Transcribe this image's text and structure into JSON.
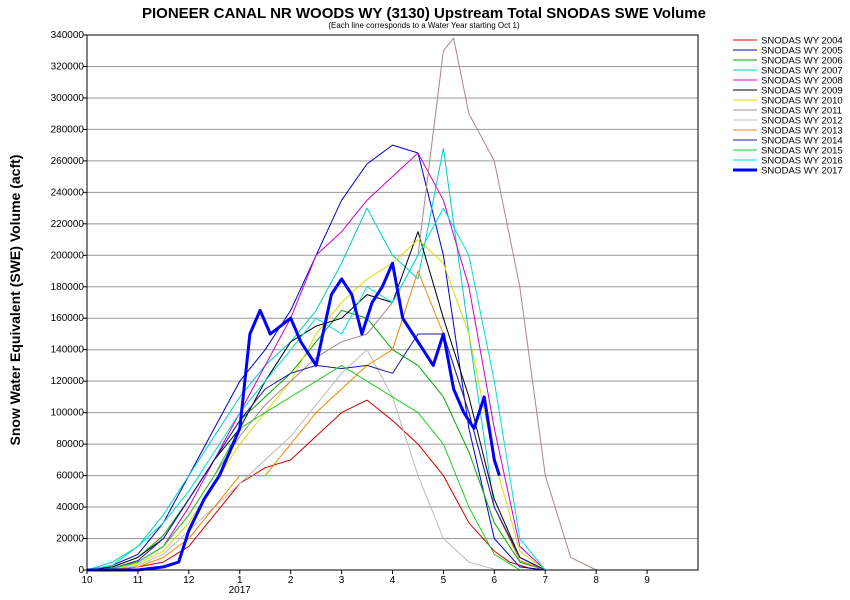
{
  "chart_data": {
    "type": "line",
    "title": "PIONEER CANAL NR WOODS WY (3130) Upstream Total SNODAS SWE Volume",
    "subtitle": "(Each line corresponds to a Water Year starting Oct 1)",
    "ylabel": "Snow Water Equivalent (SWE) Volume (acft)",
    "xlabel": "",
    "ylim": [
      0,
      340000
    ],
    "yticks": [
      0,
      20000,
      40000,
      60000,
      80000,
      100000,
      120000,
      140000,
      160000,
      180000,
      200000,
      220000,
      240000,
      260000,
      280000,
      300000,
      320000,
      340000
    ],
    "ytick_labels": [
      "0",
      "20000",
      "40000",
      "60000",
      "80000",
      "100000",
      "120000",
      "140000",
      "160000",
      "180000",
      "200000",
      "220000",
      "240000",
      "260000",
      "280000",
      "300000",
      "320000",
      "340000"
    ],
    "xlim": [
      10,
      22
    ],
    "xticks": [
      {
        "x": 10,
        "label": "10"
      },
      {
        "x": 11,
        "label": "11"
      },
      {
        "x": 12,
        "label": "12"
      },
      {
        "x": 13,
        "label": "1"
      },
      {
        "x": 14,
        "label": "2"
      },
      {
        "x": 15,
        "label": "3"
      },
      {
        "x": 16,
        "label": "4"
      },
      {
        "x": 17,
        "label": "5"
      },
      {
        "x": 18,
        "label": "6"
      },
      {
        "x": 19,
        "label": "7"
      },
      {
        "x": 20,
        "label": "8"
      },
      {
        "x": 21,
        "label": "9"
      }
    ],
    "year_label": {
      "x": 13,
      "label": "2017"
    },
    "grid": "horizontal",
    "legend_position": "right",
    "series": [
      {
        "name": "SNODAS WY 2004",
        "color": "#cc0000",
        "x": [
          10,
          10.5,
          11,
          11.5,
          12,
          12.5,
          13,
          13.5,
          14,
          14.5,
          15,
          15.5,
          16,
          16.5,
          17,
          17.5,
          18,
          18.3,
          18.7,
          19
        ],
        "values": [
          0,
          0,
          2000,
          5000,
          15000,
          35000,
          55000,
          65000,
          70000,
          85000,
          100000,
          108000,
          95000,
          80000,
          60000,
          30000,
          12000,
          5000,
          1000,
          0
        ]
      },
      {
        "name": "SNODAS WY 2005",
        "color": "#0000cc",
        "x": [
          10,
          10.5,
          11,
          11.5,
          12,
          12.5,
          13,
          13.5,
          14,
          14.5,
          15,
          15.5,
          16,
          16.5,
          17,
          17.5,
          18,
          18.5,
          19
        ],
        "values": [
          0,
          3000,
          10000,
          30000,
          60000,
          90000,
          120000,
          140000,
          165000,
          200000,
          235000,
          258000,
          270000,
          265000,
          200000,
          90000,
          20000,
          2000,
          0
        ]
      },
      {
        "name": "SNODAS WY 2006",
        "color": "#00aa00",
        "x": [
          10,
          10.5,
          11,
          11.5,
          12,
          12.5,
          13,
          13.5,
          14,
          14.5,
          15,
          15.5,
          16,
          16.5,
          17,
          17.5,
          18,
          18.5,
          19
        ],
        "values": [
          0,
          2000,
          8000,
          22000,
          45000,
          70000,
          95000,
          110000,
          125000,
          145000,
          165000,
          160000,
          140000,
          130000,
          110000,
          75000,
          30000,
          5000,
          0
        ]
      },
      {
        "name": "SNODAS WY 2007",
        "color": "#00cccc",
        "x": [
          10,
          10.5,
          11,
          11.5,
          12,
          12.5,
          13,
          13.5,
          14,
          14.5,
          15,
          15.5,
          16,
          16.5,
          17,
          17.5,
          18,
          18.5,
          19
        ],
        "values": [
          0,
          5000,
          15000,
          35000,
          60000,
          85000,
          110000,
          130000,
          145000,
          165000,
          195000,
          230000,
          200000,
          185000,
          268000,
          150000,
          40000,
          8000,
          0
        ]
      },
      {
        "name": "SNODAS WY 2008",
        "color": "#cc00cc",
        "x": [
          10,
          10.5,
          11,
          11.5,
          12,
          12.5,
          13,
          13.5,
          14,
          14.5,
          15,
          15.5,
          16,
          16.5,
          17,
          17.5,
          18,
          18.5,
          19
        ],
        "values": [
          0,
          1000,
          5000,
          15000,
          40000,
          70000,
          100000,
          130000,
          160000,
          200000,
          215000,
          235000,
          250000,
          265000,
          235000,
          180000,
          90000,
          15000,
          0
        ]
      },
      {
        "name": "SNODAS WY 2009",
        "color": "#000000",
        "x": [
          10,
          10.5,
          11,
          11.5,
          12,
          12.5,
          13,
          13.5,
          14,
          14.5,
          15,
          15.5,
          16,
          16.5,
          17,
          17.5,
          18,
          18.5,
          19
        ],
        "values": [
          0,
          2000,
          8000,
          20000,
          45000,
          70000,
          90000,
          120000,
          145000,
          155000,
          160000,
          175000,
          170000,
          215000,
          160000,
          110000,
          45000,
          8000,
          0
        ]
      },
      {
        "name": "SNODAS WY 2010",
        "color": "#dddd00",
        "x": [
          10,
          10.5,
          11,
          11.5,
          12,
          12.5,
          13,
          13.5,
          14,
          14.5,
          15,
          15.5,
          16,
          16.5,
          17,
          17.5,
          18,
          18.5,
          19
        ],
        "values": [
          0,
          1000,
          4000,
          12000,
          30000,
          55000,
          80000,
          100000,
          120000,
          150000,
          170000,
          185000,
          195000,
          210000,
          195000,
          150000,
          70000,
          12000,
          0
        ]
      },
      {
        "name": "SNODAS WY 2011",
        "color": "#aa8888",
        "x": [
          10,
          10.5,
          11,
          11.5,
          12,
          12.5,
          13,
          13.5,
          14,
          14.5,
          15,
          15.5,
          16,
          16.5,
          17,
          17.2,
          17.5,
          18,
          18.5,
          19,
          19.5,
          20
        ],
        "values": [
          0,
          1000,
          5000,
          15000,
          35000,
          60000,
          85000,
          105000,
          120000,
          135000,
          145000,
          150000,
          170000,
          200000,
          330000,
          338000,
          290000,
          260000,
          180000,
          60000,
          8000,
          0
        ]
      },
      {
        "name": "SNODAS WY 2012",
        "color": "#bbbbbb",
        "x": [
          10,
          10.5,
          11,
          11.5,
          12,
          12.5,
          13,
          13.5,
          14,
          14.5,
          15,
          15.5,
          16,
          16.5,
          17,
          17.5,
          18,
          18.5
        ],
        "values": [
          0,
          500,
          3000,
          10000,
          25000,
          40000,
          55000,
          70000,
          85000,
          105000,
          125000,
          140000,
          110000,
          60000,
          20000,
          5000,
          500,
          0
        ]
      },
      {
        "name": "SNODAS WY 2013",
        "color": "#ee8800",
        "x": [
          10,
          10.5,
          11,
          11.5,
          12,
          12.5,
          13,
          13.5,
          14,
          14.5,
          15,
          15.5,
          16,
          16.5,
          17,
          17.5,
          18,
          18.5,
          19
        ],
        "values": [
          0,
          500,
          2000,
          8000,
          20000,
          40000,
          60000,
          60000,
          80000,
          100000,
          115000,
          130000,
          140000,
          190000,
          150000,
          100000,
          40000,
          6000,
          0
        ]
      },
      {
        "name": "SNODAS WY 2014",
        "color": "#1a1aaa",
        "x": [
          10,
          10.5,
          11,
          11.5,
          12,
          12.5,
          13,
          13.5,
          14,
          14.5,
          15,
          15.5,
          16,
          16.5,
          17,
          17.5,
          18,
          18.5,
          19
        ],
        "values": [
          0,
          1000,
          6000,
          20000,
          45000,
          70000,
          95000,
          115000,
          125000,
          130000,
          128000,
          130000,
          125000,
          150000,
          150000,
          100000,
          40000,
          8000,
          0
        ]
      },
      {
        "name": "SNODAS WY 2015",
        "color": "#22cc22",
        "x": [
          10,
          10.5,
          11,
          11.5,
          12,
          12.5,
          13,
          13.5,
          14,
          14.5,
          15,
          15.5,
          16,
          16.5,
          17,
          17.5,
          18,
          18.5
        ],
        "values": [
          0,
          1000,
          5000,
          15000,
          35000,
          60000,
          90000,
          100000,
          110000,
          120000,
          130000,
          120000,
          110000,
          100000,
          80000,
          40000,
          10000,
          0
        ]
      },
      {
        "name": "SNODAS WY 2016",
        "color": "#00dddd",
        "x": [
          10,
          10.5,
          11,
          11.5,
          12,
          12.5,
          13,
          13.5,
          14,
          14.5,
          15,
          15.5,
          16,
          16.5,
          17,
          17.5,
          18,
          18.5,
          19
        ],
        "values": [
          0,
          3000,
          15000,
          30000,
          50000,
          75000,
          100000,
          120000,
          140000,
          160000,
          150000,
          180000,
          170000,
          200000,
          230000,
          200000,
          120000,
          20000,
          0
        ]
      },
      {
        "name": "SNODAS WY 2017",
        "color": "#0000ff",
        "thick": true,
        "x": [
          10,
          10.5,
          11,
          11.5,
          11.8,
          12,
          12.3,
          12.6,
          12.8,
          13,
          13.2,
          13.4,
          13.6,
          13.8,
          14,
          14.2,
          14.5,
          14.8,
          15,
          15.2,
          15.4,
          15.6,
          15.8,
          16,
          16.2,
          16.4,
          16.6,
          16.8,
          17,
          17.2,
          17.4,
          17.6,
          17.8,
          18,
          18.1
        ],
        "values": [
          0,
          0,
          0,
          2000,
          5000,
          25000,
          45000,
          60000,
          75000,
          90000,
          150000,
          165000,
          150000,
          155000,
          160000,
          145000,
          130000,
          175000,
          185000,
          175000,
          150000,
          170000,
          180000,
          195000,
          160000,
          150000,
          140000,
          130000,
          150000,
          115000,
          100000,
          90000,
          110000,
          70000,
          60000
        ]
      }
    ]
  }
}
